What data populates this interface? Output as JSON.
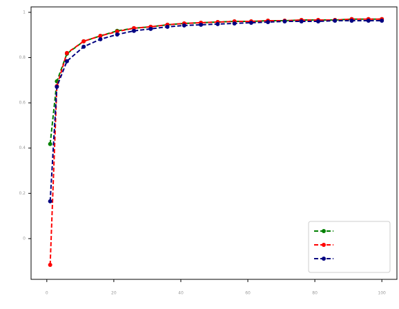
{
  "chart_data": {
    "type": "line",
    "x": [
      1,
      3,
      6,
      11,
      16,
      21,
      26,
      31,
      36,
      41,
      46,
      51,
      56,
      61,
      66,
      71,
      76,
      81,
      86,
      91,
      96,
      100
    ],
    "series": [
      {
        "color": "#008000",
        "values": [
          0.418,
          0.695,
          0.817,
          0.872,
          0.896,
          0.918,
          0.93,
          0.936,
          0.945,
          0.951,
          0.954,
          0.957,
          0.96,
          0.96,
          0.963,
          0.963,
          0.966,
          0.966,
          0.966,
          0.97,
          0.97,
          0.97
        ]
      },
      {
        "color": "#ff0000",
        "values": [
          -0.116,
          0.674,
          0.82,
          0.872,
          0.896,
          0.915,
          0.93,
          0.936,
          0.945,
          0.951,
          0.954,
          0.957,
          0.96,
          0.96,
          0.963,
          0.963,
          0.966,
          0.966,
          0.966,
          0.97,
          0.97,
          0.97
        ]
      },
      {
        "color": "#000080",
        "values": [
          0.165,
          0.671,
          0.784,
          0.848,
          0.881,
          0.902,
          0.918,
          0.927,
          0.936,
          0.942,
          0.945,
          0.948,
          0.951,
          0.954,
          0.957,
          0.96,
          0.96,
          0.96,
          0.963,
          0.963,
          0.963,
          0.963
        ]
      }
    ],
    "xlim": [
      -4.7,
      104.5
    ],
    "xticks": [
      0,
      20,
      40,
      60,
      80,
      100
    ],
    "ylim": [
      -0.18,
      1.024
    ],
    "yticks": [
      0,
      0.2,
      0.4,
      0.6,
      0.8,
      1
    ],
    "legend": "lower right"
  }
}
